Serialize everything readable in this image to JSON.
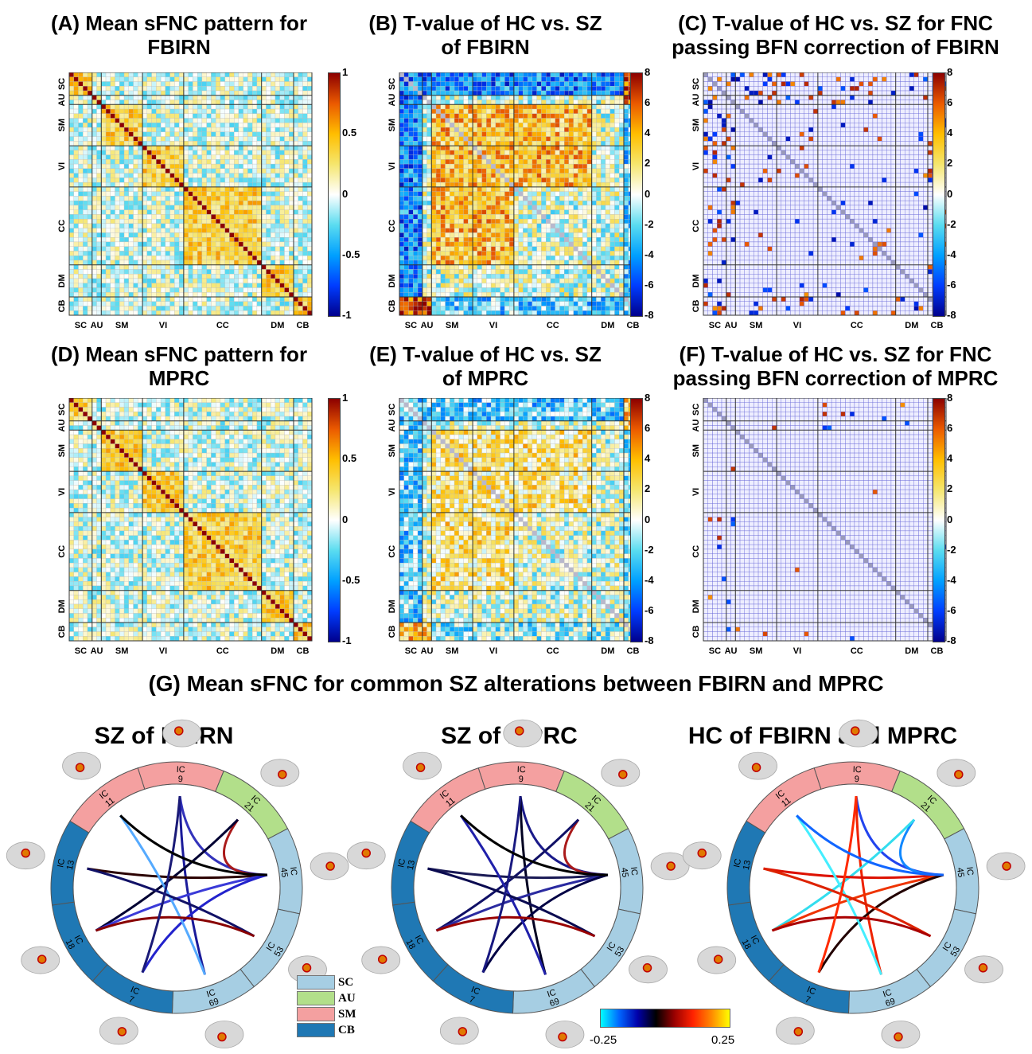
{
  "panels": [
    {
      "id": "A",
      "title_line1": "(A) Mean sFNC pattern for",
      "title_line2": "FBIRN",
      "kind": "mean",
      "ticks": [
        "1",
        "0.5",
        "0",
        "-0.5",
        "-1"
      ]
    },
    {
      "id": "B",
      "title_line1": "(B) T-value of HC vs. SZ",
      "title_line2": "of FBIRN",
      "kind": "t",
      "ticks": [
        "8",
        "6",
        "4",
        "2",
        "0",
        "-2",
        "-4",
        "-6",
        "-8"
      ]
    },
    {
      "id": "C",
      "title_line1": "(C) T-value of HC vs. SZ for FNC",
      "title_line2": "passing BFN correction of FBIRN",
      "kind": "sparse",
      "ticks": [
        "8",
        "6",
        "4",
        "2",
        "0",
        "-2",
        "-4",
        "-6",
        "-8"
      ]
    },
    {
      "id": "D",
      "title_line1": "(D) Mean sFNC pattern for",
      "title_line2": "MPRC",
      "kind": "mean",
      "ticks": [
        "1",
        "0.5",
        "0",
        "-0.5",
        "-1"
      ]
    },
    {
      "id": "E",
      "title_line1": "(E) T-value of HC vs. SZ",
      "title_line2": "of MPRC",
      "kind": "t",
      "ticks": [
        "8",
        "6",
        "4",
        "2",
        "0",
        "-2",
        "-4",
        "-6",
        "-8"
      ]
    },
    {
      "id": "F",
      "title_line1": "(F) T-value of HC vs. SZ for FNC",
      "title_line2": "passing BFN correction of MPRC",
      "kind": "sparse",
      "ticks": [
        "8",
        "6",
        "4",
        "2",
        "0",
        "-2",
        "-4",
        "-6",
        "-8"
      ]
    }
  ],
  "domains": [
    "SC",
    "AU",
    "SM",
    "VI",
    "CC",
    "DM",
    "CB"
  ],
  "domain_sizes": [
    5,
    2,
    9,
    9,
    17,
    7,
    4
  ],
  "panel_g_title": "(G) Mean sFNC for common SZ alterations between FBIRN and MPRC",
  "circles": [
    {
      "title": "SZ of FBIRN"
    },
    {
      "title": "SZ of MPRC"
    },
    {
      "title": "HC of FBIRN and MPRC"
    }
  ],
  "segments": [
    {
      "ic": "9",
      "domain": "SM"
    },
    {
      "ic": "21",
      "domain": "AU"
    },
    {
      "ic": "45",
      "domain": "SC"
    },
    {
      "ic": "53",
      "domain": "SC"
    },
    {
      "ic": "69",
      "domain": "SC"
    },
    {
      "ic": "7",
      "domain": "CB"
    },
    {
      "ic": "18",
      "domain": "CB"
    },
    {
      "ic": "13",
      "domain": "CB"
    },
    {
      "ic": "11",
      "domain": "SM"
    }
  ],
  "ic_prefix": "IC",
  "domain_colors": {
    "SC": "#a6cee3",
    "AU": "#b2df8a",
    "SM": "#f4a0a0",
    "CB": "#1f78b4"
  },
  "legend": [
    "SC",
    "AU",
    "SM",
    "CB"
  ],
  "colorbar_min": "-0.25",
  "colorbar_max": "0.25"
}
